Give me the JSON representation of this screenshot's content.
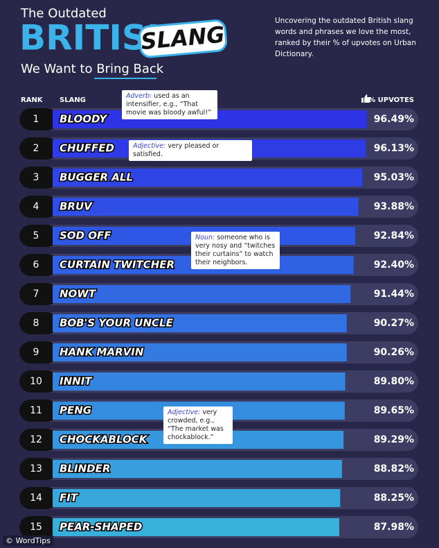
{
  "chart_data": {
    "type": "bar",
    "orientation": "horizontal",
    "title_top": "The Outdated",
    "title_main": "BRITISH",
    "title_badge": "SLANG",
    "title_bottom": "We Want to Bring Back",
    "subtitle": "Uncovering the outdated British slang words and phrases we love the most, ranked by their % of upvotes on Urban Dictionary.",
    "rank_header": "RANK",
    "category_header": "SLANG",
    "value_header": "% UPVOTES",
    "ranks": [
      "1",
      "2",
      "3",
      "4",
      "5",
      "6",
      "7",
      "8",
      "9",
      "10",
      "11",
      "12",
      "13",
      "14",
      "15"
    ],
    "categories": [
      "BLOODY",
      "CHUFFED",
      "BUGGER ALL",
      "BRUV",
      "SOD OFF",
      "CURTAIN TWITCHER",
      "NOWT",
      "BOB'S YOUR UNCLE",
      "HANK MARVIN",
      "INNIT",
      "PENG",
      "CHOCKABLOCK",
      "BLINDER",
      "FIT",
      "PEAR-SHAPED"
    ],
    "values": [
      96.49,
      96.13,
      95.03,
      93.88,
      92.84,
      92.4,
      91.44,
      90.27,
      90.26,
      89.8,
      89.65,
      89.29,
      88.82,
      88.25,
      87.98
    ],
    "value_labels": [
      "96.49%",
      "96.13%",
      "95.03%",
      "93.88%",
      "92.84%",
      "92.40%",
      "91.44%",
      "90.27%",
      "90.26%",
      "89.80%",
      "89.65%",
      "89.29%",
      "88.82%",
      "88.25%",
      "87.98%"
    ],
    "colors": [
      "#2f33e6",
      "#2f3ce6",
      "#2f45e6",
      "#2f4ee6",
      "#2f57e6",
      "#3060e4",
      "#3169e3",
      "#3272e2",
      "#337be1",
      "#3484e0",
      "#358ddf",
      "#3696de",
      "#379fdd",
      "#38a8dc",
      "#39b0db"
    ],
    "xlim": [
      0,
      112
    ],
    "annotations": [
      {
        "term": "Adverb:",
        "text": "used as an intensifier, e.g., “That movie was bloody awful!”"
      },
      {
        "term": "Adjective:",
        "text": "very pleased or satisfied."
      },
      {
        "term": "Noun:",
        "text": "someone who is very nosy and “twitches their curtains” to watch their neighbors."
      },
      {
        "term": "Adjective:",
        "text": "very crowded, e.g., “The market was chockablock.”"
      }
    ],
    "source": "© WordTips"
  }
}
